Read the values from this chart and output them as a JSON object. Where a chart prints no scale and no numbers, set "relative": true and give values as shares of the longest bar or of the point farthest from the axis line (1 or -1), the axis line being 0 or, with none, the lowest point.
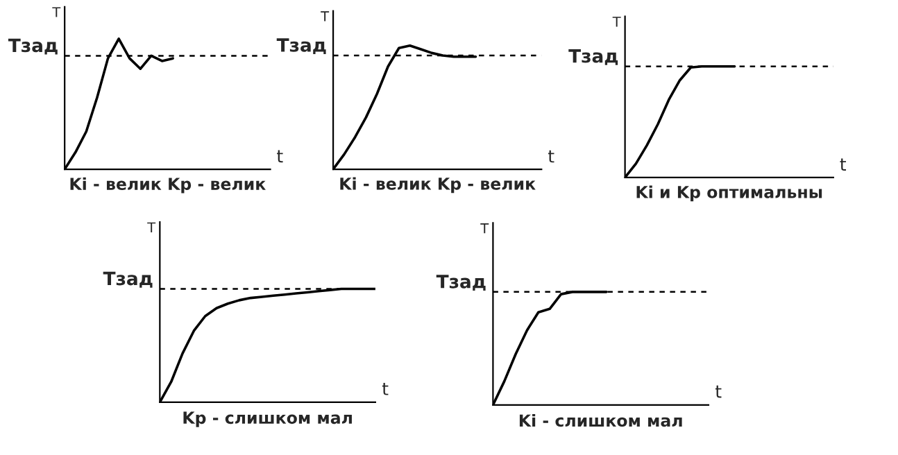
{
  "chart_data": [
    {
      "type": "line",
      "title": "Ki - велик Kp - велик",
      "xlabel": "t",
      "ylabel": "T",
      "relative": true,
      "categories": [
        null,
        null,
        null,
        null,
        null,
        null,
        null,
        null,
        null,
        null,
        null,
        null,
        null,
        null,
        null,
        null,
        null,
        null,
        null,
        null
      ],
      "series": [
        {
          "color": "#000000",
          "values": [
            0,
            0.13,
            0.29,
            0.55,
            0.85,
            1.0,
            0.85,
            0.77,
            0.87,
            0.83,
            0.85,
            null,
            null,
            null,
            null,
            null,
            null,
            null,
            null,
            null
          ]
        }
      ],
      "ref_lines": [
        {
          "axis": "y",
          "value": 0.87,
          "label": "Tзад",
          "line_style": "dashed",
          "color": "#000000"
        }
      ]
    },
    {
      "type": "line",
      "title": "Ki - велик Kp - велик",
      "xlabel": "t",
      "ylabel": "T",
      "relative": true,
      "categories": [
        null,
        null,
        null,
        null,
        null,
        null,
        null,
        null,
        null,
        null,
        null,
        null,
        null,
        null,
        null,
        null,
        null,
        null,
        null,
        null
      ],
      "series": [
        {
          "color": "#000000",
          "values": [
            0,
            0.12,
            0.26,
            0.42,
            0.61,
            0.83,
            0.98,
            1.0,
            0.97,
            0.94,
            0.92,
            0.91,
            0.91,
            0.91,
            null,
            null,
            null,
            null,
            null,
            null
          ]
        }
      ],
      "ref_lines": [
        {
          "axis": "y",
          "value": 0.92,
          "label": "Tзад",
          "line_style": "dashed",
          "color": "#000000"
        }
      ]
    },
    {
      "type": "line",
      "title": "Ki и Kp оптимальны",
      "xlabel": "t",
      "ylabel": "T",
      "relative": true,
      "categories": [
        null,
        null,
        null,
        null,
        null,
        null,
        null,
        null,
        null,
        null,
        null,
        null,
        null,
        null,
        null,
        null,
        null,
        null,
        null,
        null
      ],
      "series": [
        {
          "color": "#000000",
          "values": [
            0,
            0.125,
            0.29,
            0.48,
            0.7,
            0.875,
            0.99,
            1.0,
            1.0,
            1.0,
            1.0,
            null,
            null,
            null,
            null,
            null,
            null,
            null,
            null,
            null
          ]
        }
      ],
      "ref_lines": [
        {
          "axis": "y",
          "value": 1.0,
          "label": "Tзад",
          "line_style": "dashed",
          "color": "#000000"
        }
      ]
    },
    {
      "type": "line",
      "title": "Kp - слишком мал",
      "xlabel": "t",
      "ylabel": "T",
      "relative": true,
      "categories": [
        null,
        null,
        null,
        null,
        null,
        null,
        null,
        null,
        null,
        null,
        null,
        null,
        null,
        null,
        null,
        null,
        null,
        null,
        null,
        null
      ],
      "series": [
        {
          "color": "#000000",
          "values": [
            0,
            0.18,
            0.43,
            0.63,
            0.76,
            0.83,
            0.87,
            0.9,
            0.92,
            0.93,
            0.94,
            0.95,
            0.96,
            0.97,
            0.98,
            0.99,
            1.0,
            1.0,
            1.0,
            1.0
          ]
        }
      ],
      "ref_lines": [
        {
          "axis": "y",
          "value": 1.0,
          "label": "Tзад",
          "line_style": "dashed",
          "color": "#000000"
        }
      ]
    },
    {
      "type": "line",
      "title": "Ki - слишком мал",
      "xlabel": "t",
      "ylabel": "T",
      "relative": true,
      "categories": [
        null,
        null,
        null,
        null,
        null,
        null,
        null,
        null,
        null,
        null,
        null,
        null,
        null,
        null,
        null,
        null,
        null,
        null,
        null,
        null
      ],
      "series": [
        {
          "color": "#000000",
          "values": [
            0,
            0.21,
            0.45,
            0.66,
            0.82,
            0.85,
            0.98,
            1.0,
            1.0,
            1.0,
            1.0,
            null,
            null,
            null,
            null,
            null,
            null,
            null,
            null,
            null
          ]
        }
      ],
      "ref_lines": [
        {
          "axis": "y",
          "value": 1.0,
          "label": "Tзад",
          "line_style": "dashed",
          "color": "#000000"
        }
      ]
    }
  ]
}
